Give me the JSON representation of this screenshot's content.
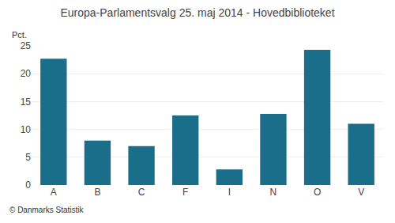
{
  "chart_data": {
    "type": "bar",
    "title": "Europa-Parlamentsvalg 25. maj 2014 - Hovedbiblioteket",
    "categories": [
      "A",
      "B",
      "C",
      "F",
      "I",
      "N",
      "O",
      "V"
    ],
    "values": [
      22.7,
      8.0,
      7.0,
      12.5,
      2.8,
      12.8,
      24.3,
      11.0
    ],
    "color": "#1a6e8a",
    "ylabel": "Pct.",
    "ylim": [
      0,
      25
    ],
    "yticks": [
      0,
      5,
      10,
      15,
      20,
      25
    ],
    "grid": true,
    "annotations": [
      "© Danmarks Statistik"
    ]
  }
}
